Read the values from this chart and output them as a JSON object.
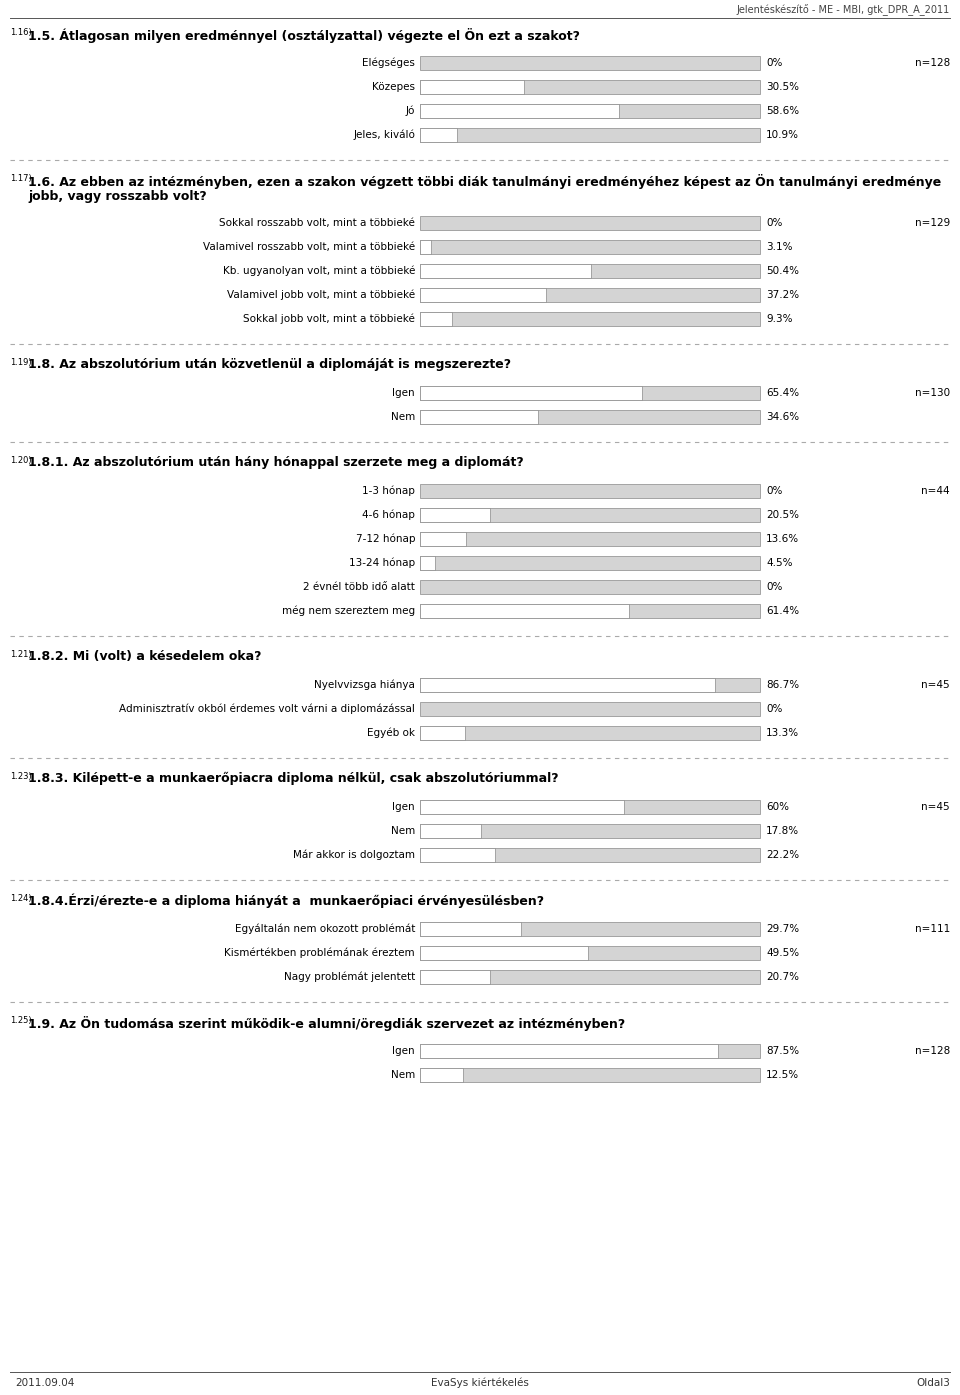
{
  "header": "Jelentéskészítő - ME - MBI, gtk_DPR_A_2011",
  "footer_left": "2011.09.04",
  "footer_center": "EvaSys kiértékelés",
  "footer_right": "Oldal3",
  "sections": [
    {
      "number": "1.16)",
      "question": "1.5. Átlagosan milyen eredménnyel (osztályzattal) végezte el Ön ezt a szakot?",
      "n": "n=128",
      "two_line": false,
      "items": [
        {
          "label": "Elégséges",
          "value": 0.0,
          "pct": "0%"
        },
        {
          "label": "Közepes",
          "value": 30.5,
          "pct": "30.5%"
        },
        {
          "label": "Jó",
          "value": 58.6,
          "pct": "58.6%"
        },
        {
          "label": "Jeles, kiváló",
          "value": 10.9,
          "pct": "10.9%"
        }
      ]
    },
    {
      "number": "1.17)",
      "question_line1": "1.6. Az ebben az intézményben, ezen a szakon végzett többi diák tanulmányi eredményéhez képest az Ön tanulmányi eredménye",
      "question_line2": "jobb, vagy rosszabb volt?",
      "n": "n=129",
      "two_line": true,
      "items": [
        {
          "label": "Sokkal rosszabb volt, mint a többieké",
          "value": 0.0,
          "pct": "0%"
        },
        {
          "label": "Valamivel rosszabb volt, mint a többieké",
          "value": 3.1,
          "pct": "3.1%"
        },
        {
          "label": "Kb. ugyanolyan volt, mint a többieké",
          "value": 50.4,
          "pct": "50.4%"
        },
        {
          "label": "Valamivel jobb volt, mint a többieké",
          "value": 37.2,
          "pct": "37.2%"
        },
        {
          "label": "Sokkal jobb volt, mint a többieké",
          "value": 9.3,
          "pct": "9.3%"
        }
      ]
    },
    {
      "number": "1.19)",
      "question": "1.8. Az abszolutórium után közvetlenül a diplomáját is megszerezte?",
      "n": "n=130",
      "two_line": false,
      "items": [
        {
          "label": "Igen",
          "value": 65.4,
          "pct": "65.4%"
        },
        {
          "label": "Nem",
          "value": 34.6,
          "pct": "34.6%"
        }
      ]
    },
    {
      "number": "1.20)",
      "question": "1.8.1. Az abszolutórium után hány hónappal szerzete meg a diplomát?",
      "n": "n=44",
      "two_line": false,
      "items": [
        {
          "label": "1-3 hónap",
          "value": 0.0,
          "pct": "0%"
        },
        {
          "label": "4-6 hónap",
          "value": 20.5,
          "pct": "20.5%"
        },
        {
          "label": "7-12 hónap",
          "value": 13.6,
          "pct": "13.6%"
        },
        {
          "label": "13-24 hónap",
          "value": 4.5,
          "pct": "4.5%"
        },
        {
          "label": "2 évnél több idő alatt",
          "value": 0.0,
          "pct": "0%"
        },
        {
          "label": "még nem szereztem meg",
          "value": 61.4,
          "pct": "61.4%"
        }
      ]
    },
    {
      "number": "1.21)",
      "question": "1.8.2. Mi (volt) a késedelem oka?",
      "n": "n=45",
      "two_line": false,
      "items": [
        {
          "label": "Nyelvvizsga hiánya",
          "value": 86.7,
          "pct": "86.7%"
        },
        {
          "label": "Adminisztratív okból érdemes volt várni a diplomázással",
          "value": 0.0,
          "pct": "0%"
        },
        {
          "label": "Egyéb ok",
          "value": 13.3,
          "pct": "13.3%"
        }
      ]
    },
    {
      "number": "1.23)",
      "question": "1.8.3. Kilépett-e a munkaerőpiacra diploma nélkül, csak abszolutóriummal?",
      "n": "n=45",
      "two_line": false,
      "items": [
        {
          "label": "Igen",
          "value": 60.0,
          "pct": "60%"
        },
        {
          "label": "Nem",
          "value": 17.8,
          "pct": "17.8%"
        },
        {
          "label": "Már akkor is dolgoztam",
          "value": 22.2,
          "pct": "22.2%"
        }
      ]
    },
    {
      "number": "1.24)",
      "question": "1.8.4.Érzi/érezte-e a diploma hiányát a  munkaerőpiaci érvényesülésben?",
      "n": "n=111",
      "two_line": false,
      "items": [
        {
          "label": "Egyáltalán nem okozott problémát",
          "value": 29.7,
          "pct": "29.7%"
        },
        {
          "label": "Kismértékben problémának éreztem",
          "value": 49.5,
          "pct": "49.5%"
        },
        {
          "label": "Nagy problémát jelentett",
          "value": 20.7,
          "pct": "20.7%"
        }
      ]
    },
    {
      "number": "1.25)",
      "question": "1.9. Az Ön tudomása szerint működik-e alumni/öregdiák szervezet az intézményben?",
      "n": "n=128",
      "two_line": false,
      "items": [
        {
          "label": "Igen",
          "value": 87.5,
          "pct": "87.5%"
        },
        {
          "label": "Nem",
          "value": 12.5,
          "pct": "12.5%"
        }
      ]
    }
  ],
  "bar_color_fill": "#d4d4d4",
  "bar_color_data": "#ffffff",
  "bar_outline": "#888888",
  "bg_color": "#ffffff",
  "text_color": "#000000",
  "dashed_color": "#aaaaaa"
}
